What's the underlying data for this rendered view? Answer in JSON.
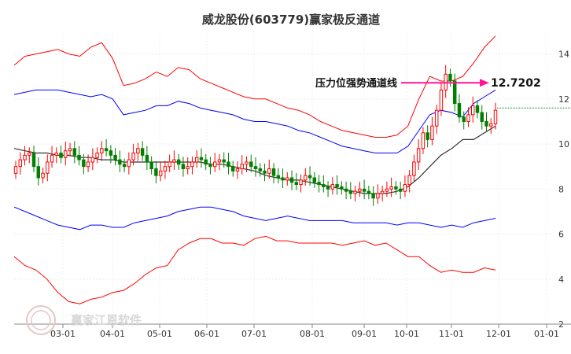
{
  "chart_data": {
    "type": "line",
    "title": "威龙股份(603779)赢家极反通道",
    "x_labels": [
      "03-01",
      "04-01",
      "05-01",
      "06-01",
      "07-01",
      "08-01",
      "09-01",
      "10-01",
      "11-01",
      "12-01",
      "01-01"
    ],
    "y_ticks": [
      2,
      4,
      6,
      8,
      10,
      12,
      14
    ],
    "ylim": [
      2,
      15
    ],
    "grid": true,
    "series": [
      {
        "key": "outer_upper",
        "color": "#ff0000",
        "values": [
          13.5,
          13.9,
          14.0,
          14.1,
          14.2,
          14.0,
          13.9,
          14.3,
          14.5,
          13.8,
          12.6,
          12.7,
          12.9,
          13.2,
          13.0,
          13.4,
          13.3,
          12.9,
          12.7,
          12.5,
          12.3,
          12.1,
          12.0,
          12.0,
          11.8,
          11.6,
          11.5,
          11.3,
          11.0,
          10.8,
          10.6,
          10.5,
          10.4,
          10.3,
          10.3,
          10.4,
          10.8,
          12.0,
          13.0,
          12.8,
          12.8,
          13.0,
          13.6,
          14.3,
          14.8
        ]
      },
      {
        "key": "inner_upper",
        "color": "#0000ff",
        "values": [
          12.2,
          12.3,
          12.4,
          12.4,
          12.4,
          12.3,
          12.2,
          12.1,
          12.2,
          12.0,
          11.3,
          11.4,
          11.5,
          11.7,
          11.7,
          11.9,
          11.8,
          11.6,
          11.5,
          11.4,
          11.3,
          11.1,
          11.0,
          11.0,
          10.9,
          10.8,
          10.6,
          10.5,
          10.3,
          10.1,
          9.9,
          9.8,
          9.7,
          9.6,
          9.6,
          9.6,
          9.9,
          10.6,
          11.3,
          11.5,
          11.4,
          11.2,
          11.8,
          12.1,
          12.4
        ]
      },
      {
        "key": "middle",
        "color": "#333333",
        "values": [
          9.8,
          9.7,
          9.6,
          9.6,
          9.5,
          9.5,
          9.4,
          9.4,
          9.3,
          9.3,
          9.2,
          9.2,
          9.2,
          9.2,
          9.2,
          9.2,
          9.2,
          9.2,
          9.1,
          9.1,
          9.0,
          8.9,
          8.8,
          8.6,
          8.5,
          8.4,
          8.4,
          8.3,
          8.2,
          8.1,
          8.0,
          7.9,
          7.8,
          7.8,
          7.8,
          7.9,
          8.1,
          8.5,
          9.0,
          9.5,
          9.8,
          10.2,
          10.2,
          10.5,
          10.8
        ]
      },
      {
        "key": "inner_lower",
        "color": "#0000ff",
        "values": [
          7.2,
          7.0,
          6.8,
          6.6,
          6.4,
          6.3,
          6.2,
          6.4,
          6.4,
          6.3,
          6.3,
          6.5,
          6.6,
          6.7,
          6.8,
          7.0,
          7.1,
          7.2,
          7.2,
          7.1,
          7.0,
          6.8,
          6.7,
          6.6,
          6.7,
          6.8,
          6.7,
          6.6,
          6.6,
          6.6,
          6.6,
          6.5,
          6.5,
          6.5,
          6.5,
          6.4,
          6.5,
          6.5,
          6.4,
          6.3,
          6.4,
          6.3,
          6.5,
          6.6,
          6.7
        ]
      },
      {
        "key": "outer_lower",
        "color": "#ff0000",
        "values": [
          5.0,
          4.6,
          4.4,
          4.0,
          3.4,
          3.0,
          2.9,
          3.1,
          3.2,
          3.4,
          3.5,
          3.8,
          4.2,
          4.5,
          4.6,
          5.3,
          5.6,
          5.8,
          5.8,
          5.6,
          5.6,
          5.5,
          5.8,
          5.9,
          5.7,
          5.7,
          5.6,
          5.6,
          5.6,
          5.6,
          5.5,
          5.6,
          5.7,
          5.5,
          5.6,
          5.3,
          5.0,
          5.0,
          4.6,
          4.3,
          4.4,
          4.3,
          4.3,
          4.5,
          4.4
        ]
      }
    ],
    "candles": {
      "up_color": "#ff0000",
      "down_color": "#008000",
      "closes": [
        9.0,
        9.3,
        9.5,
        9.6,
        9.0,
        8.5,
        8.7,
        9.2,
        9.5,
        9.6,
        9.4,
        9.7,
        9.8,
        9.5,
        9.3,
        9.0,
        9.2,
        9.4,
        9.6,
        9.8,
        9.7,
        9.5,
        9.3,
        9.1,
        9.0,
        9.3,
        9.6,
        9.8,
        9.5,
        9.2,
        8.9,
        8.6,
        8.8,
        9.0,
        9.2,
        9.3,
        9.1,
        8.9,
        9.0,
        9.2,
        9.4,
        9.3,
        9.1,
        9.0,
        9.2,
        9.3,
        9.2,
        9.0,
        8.8,
        8.9,
        9.1,
        9.2,
        9.0,
        8.9,
        8.8,
        8.7,
        8.9,
        8.6,
        8.5,
        8.4,
        8.5,
        8.3,
        8.2,
        8.4,
        8.6,
        8.5,
        8.3,
        8.2,
        8.1,
        8.0,
        8.2,
        8.1,
        8.0,
        7.9,
        7.8,
        7.9,
        8.0,
        7.9,
        7.8,
        7.6,
        7.8,
        7.9,
        8.0,
        8.1,
        8.0,
        7.9,
        8.2,
        8.6,
        9.2,
        9.8,
        10.5,
        10.2,
        10.8,
        11.5,
        12.4,
        13.1,
        12.8,
        11.8,
        11.2,
        11.0,
        11.3,
        11.7,
        11.4,
        11.0,
        10.8,
        10.9,
        11.5
      ]
    },
    "last_value_line": 11.6,
    "annotation": {
      "label": "压力位强势通道线",
      "value": "12.7202",
      "level": 12.7202,
      "color": "#ff1493"
    }
  },
  "watermark": {
    "text": "赢家江恩软件"
  }
}
